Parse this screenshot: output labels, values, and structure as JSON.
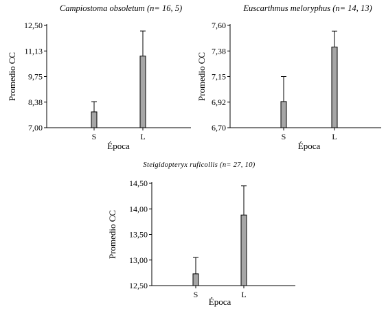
{
  "chart_data": [
    {
      "type": "bar",
      "title_species": "Campiostoma obsoletum",
      "title_n": "(n= 16, 5)",
      "xlabel": "Época",
      "ylabel": "Promedio CC",
      "categories": [
        "S",
        "L"
      ],
      "values": [
        7.85,
        10.85
      ],
      "errors": [
        0.55,
        1.35
      ],
      "ylim": [
        7.0,
        12.5
      ],
      "yticks": [
        "7,00",
        "8,38",
        "9,75",
        "11,13",
        "12,50"
      ],
      "ytick_values": [
        7.0,
        8.375,
        9.75,
        11.125,
        12.5
      ],
      "bar_color": "#a6a6a6"
    },
    {
      "type": "bar",
      "title_species": "Euscarthmus meloryphus",
      "title_n": "(n= 14, 13)",
      "xlabel": "Época",
      "ylabel": "Promedio CC",
      "categories": [
        "S",
        "L"
      ],
      "values": [
        6.93,
        7.41
      ],
      "errors": [
        0.22,
        0.14
      ],
      "ylim": [
        6.7,
        7.6
      ],
      "yticks": [
        "6,70",
        "6,92",
        "7,15",
        "7,38",
        "7,60"
      ],
      "ytick_values": [
        6.7,
        6.925,
        7.15,
        7.375,
        7.6
      ],
      "bar_color": "#a6a6a6"
    },
    {
      "type": "bar",
      "title_species": "Steigidopteryx ruficollis",
      "title_n": "(n= 27, 10)",
      "xlabel": "Época",
      "ylabel": "Promedio CC",
      "categories": [
        "S",
        "L"
      ],
      "values": [
        12.73,
        13.88
      ],
      "errors": [
        0.32,
        0.57
      ],
      "ylim": [
        12.5,
        14.5
      ],
      "yticks": [
        "12,50",
        "13,00",
        "13,50",
        "14,00",
        "14,50"
      ],
      "ytick_values": [
        12.5,
        13.0,
        13.5,
        14.0,
        14.5
      ],
      "bar_color": "#a6a6a6"
    }
  ]
}
